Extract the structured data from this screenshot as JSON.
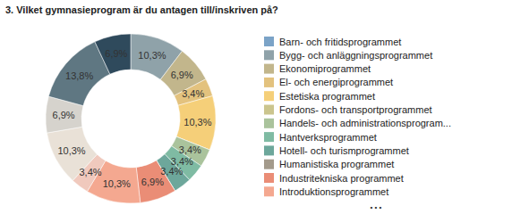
{
  "chart_data": {
    "type": "donut",
    "title": "3. Vilket gymnasieprogram är du antagen till/inskriven på?",
    "categories": [
      "Barn- och fritidsprogrammet",
      "Bygg- och anläggningsprogrammet",
      "Ekonomiprogrammet",
      "El- och energiprogrammet",
      "Estetiska programmet",
      "Fordons- och transportprogrammet",
      "Handels- och administrationsprogram...",
      "Hantverksprogrammet",
      "Hotell- och turismprogrammet",
      "Humanistiska programmet",
      "Industritekniska programmet",
      "Introduktionsprogrammet",
      null,
      null,
      null,
      null,
      null
    ],
    "values": [
      0,
      10.3,
      6.9,
      3.4,
      10.3,
      0,
      3.4,
      3.4,
      3.4,
      0,
      6.9,
      10.3,
      3.4,
      10.3,
      6.9,
      13.8,
      6.9
    ],
    "value_labels": [
      null,
      "10,3%",
      "6,9%",
      "3,4%",
      "10,3%",
      null,
      "3,4%",
      "3,4%",
      "3,4%",
      null,
      "6,9%",
      "10,3%",
      "3,4%",
      "10,3%",
      "6,9%",
      "13,8%",
      "6,9%"
    ],
    "colors": [
      "#7ba3c7",
      "#8fa2a9",
      "#c2b68c",
      "#e3c27e",
      "#f5cf79",
      "#cbc58e",
      "#aac39c",
      "#7fbba3",
      "#6da79b",
      "#a39a8b",
      "#ea8d76",
      "#f4a890",
      "#f0c9bd",
      "#e9e1d7",
      "#d6d3cd",
      "#5f7782",
      "#2f4a5c"
    ],
    "data_labels": true,
    "legend": "right",
    "annotations": [
      "• • •"
    ]
  }
}
